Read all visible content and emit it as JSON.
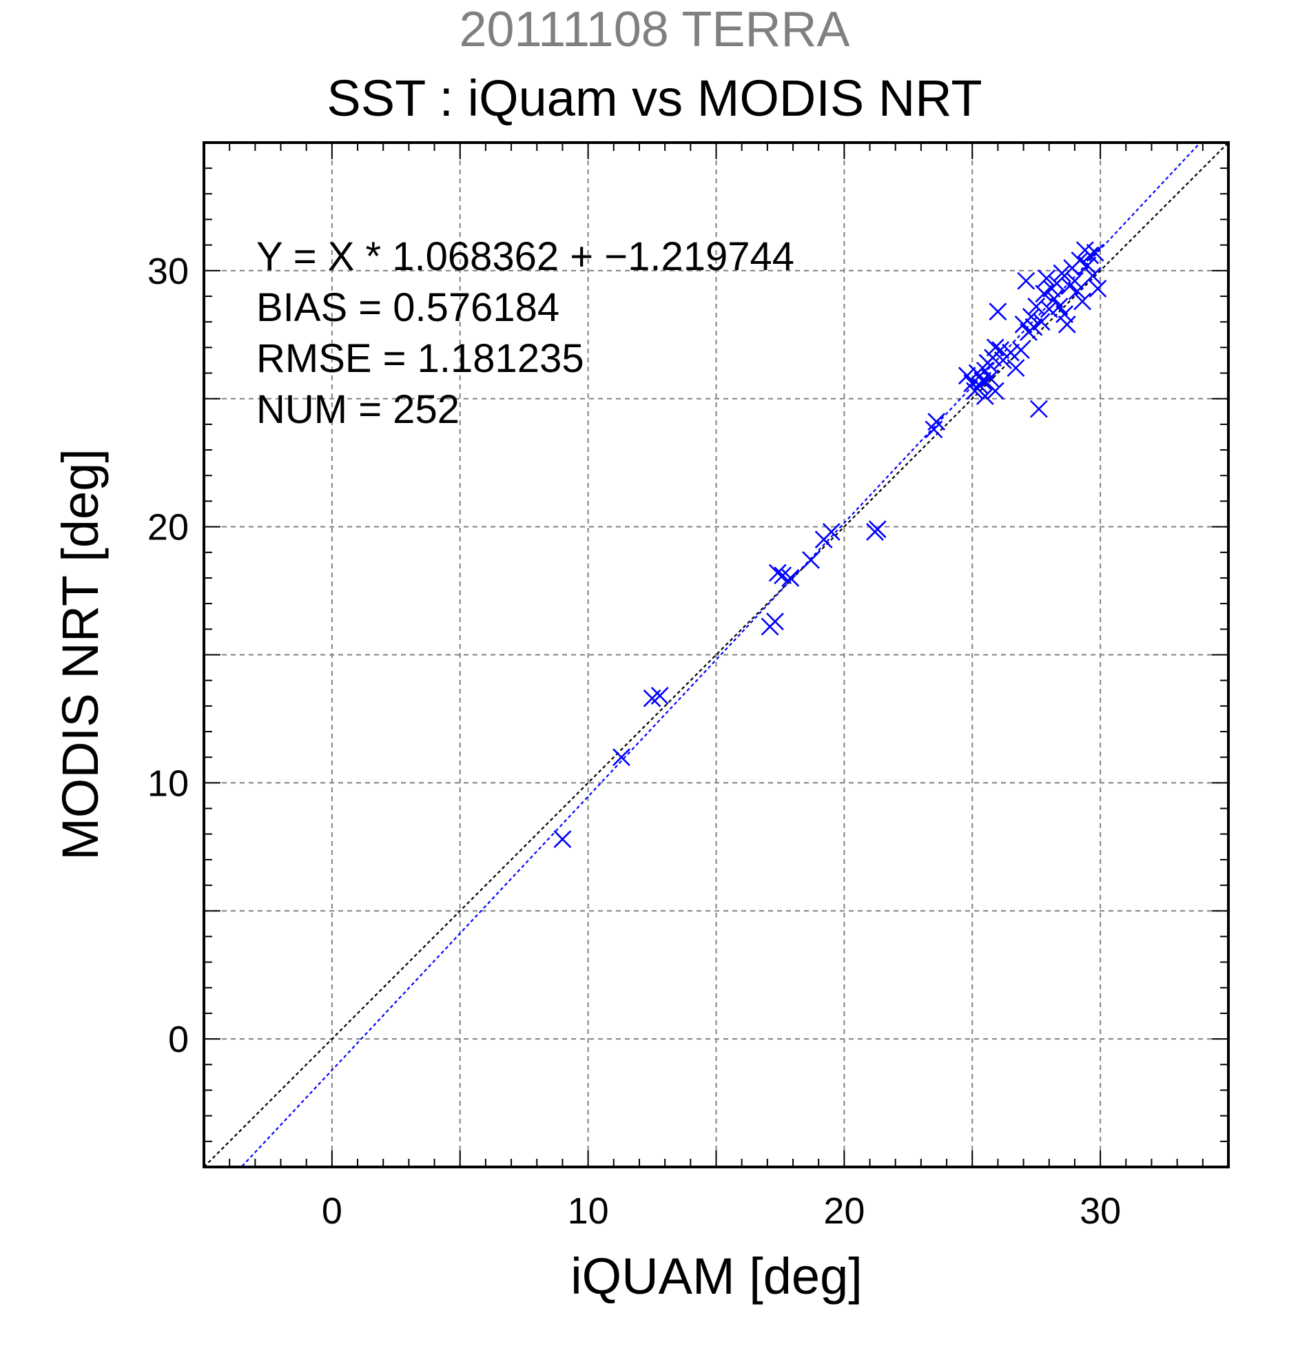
{
  "header": {
    "date_sat": "20111108 TERRA",
    "title": "SST : iQuam vs MODIS NRT"
  },
  "stats": [
    "Y = X * 1.068362 + −1.219744",
    "BIAS = 0.576184",
    "RMSE = 1.181235",
    "NUM = 252"
  ],
  "colors": {
    "points": "#0000ff",
    "fit_line": "#0000ff",
    "identity_line": "#000000",
    "grid": "#808080",
    "subtitle": "#808080"
  },
  "chart_data": {
    "type": "scatter",
    "title": "SST : iQuam vs MODIS NRT",
    "subtitle": "20111108 TERRA",
    "xlabel": "iQUAM [deg]",
    "ylabel": "MODIS NRT [deg]",
    "xlim": [
      -5,
      35
    ],
    "ylim": [
      -5,
      35
    ],
    "x_ticks": [
      0,
      10,
      20,
      30
    ],
    "y_ticks": [
      0,
      10,
      20,
      30
    ],
    "grid": true,
    "marker": "x",
    "fit": {
      "slope": 1.068362,
      "intercept": -1.219744
    },
    "identity_line": true,
    "points": [
      [
        9.0,
        7.8
      ],
      [
        11.3,
        11.0
      ],
      [
        12.5,
        13.3
      ],
      [
        12.8,
        13.4
      ],
      [
        17.1,
        16.1
      ],
      [
        17.3,
        16.3
      ],
      [
        17.4,
        18.2
      ],
      [
        17.6,
        18.1
      ],
      [
        17.9,
        18.0
      ],
      [
        18.7,
        18.7
      ],
      [
        19.2,
        19.5
      ],
      [
        19.5,
        19.8
      ],
      [
        21.2,
        19.8
      ],
      [
        21.3,
        19.9
      ],
      [
        23.5,
        23.8
      ],
      [
        23.6,
        24.1
      ],
      [
        24.8,
        25.9
      ],
      [
        25.0,
        25.6
      ],
      [
        25.1,
        25.3
      ],
      [
        25.2,
        26.0
      ],
      [
        25.3,
        25.5
      ],
      [
        25.4,
        25.7
      ],
      [
        25.5,
        26.1
      ],
      [
        25.5,
        25.1
      ],
      [
        25.6,
        26.4
      ],
      [
        25.7,
        25.8
      ],
      [
        25.8,
        26.6
      ],
      [
        25.9,
        27.0
      ],
      [
        25.9,
        25.3
      ],
      [
        26.0,
        28.4
      ],
      [
        26.1,
        26.9
      ],
      [
        26.2,
        26.5
      ],
      [
        26.5,
        26.8
      ],
      [
        26.7,
        26.2
      ],
      [
        26.9,
        26.9
      ],
      [
        27.0,
        27.9
      ],
      [
        27.1,
        29.6
      ],
      [
        27.2,
        27.6
      ],
      [
        27.3,
        28.2
      ],
      [
        27.4,
        27.8
      ],
      [
        27.5,
        28.6
      ],
      [
        27.6,
        24.6
      ],
      [
        27.7,
        28.0
      ],
      [
        27.8,
        29.1
      ],
      [
        27.9,
        29.7
      ],
      [
        28.0,
        28.5
      ],
      [
        28.1,
        29.3
      ],
      [
        28.2,
        28.9
      ],
      [
        28.3,
        29.5
      ],
      [
        28.4,
        28.6
      ],
      [
        28.5,
        29.9
      ],
      [
        28.6,
        28.3
      ],
      [
        28.7,
        27.9
      ],
      [
        28.8,
        29.4
      ],
      [
        28.9,
        30.1
      ],
      [
        29.0,
        29.6
      ],
      [
        29.1,
        29.2
      ],
      [
        29.2,
        30.4
      ],
      [
        29.3,
        28.8
      ],
      [
        29.4,
        30.8
      ],
      [
        29.5,
        30.2
      ],
      [
        29.6,
        30.6
      ],
      [
        29.7,
        29.8
      ],
      [
        29.8,
        30.7
      ],
      [
        29.9,
        29.3
      ]
    ]
  }
}
